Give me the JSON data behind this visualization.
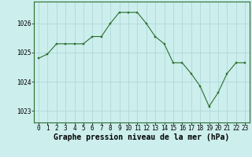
{
  "x": [
    0,
    1,
    2,
    3,
    4,
    5,
    6,
    7,
    8,
    9,
    10,
    11,
    12,
    13,
    14,
    15,
    16,
    17,
    18,
    19,
    20,
    21,
    22,
    23
  ],
  "y": [
    1024.8,
    1024.95,
    1025.3,
    1025.3,
    1025.3,
    1025.3,
    1025.55,
    1025.55,
    1026.0,
    1026.38,
    1026.38,
    1026.38,
    1026.0,
    1025.55,
    1025.3,
    1024.65,
    1024.65,
    1024.28,
    1023.85,
    1023.15,
    1023.62,
    1024.28,
    1024.65,
    1024.65
  ],
  "line_color": "#2d6e2d",
  "marker_color": "#2d6e2d",
  "bg_color": "#cceeed",
  "grid_color": "#b0d8d8",
  "xlabel": "Graphe pression niveau de la mer (hPa)",
  "ylim": [
    1022.6,
    1026.75
  ],
  "yticks": [
    1023,
    1024,
    1025,
    1026
  ],
  "xticks": [
    0,
    1,
    2,
    3,
    4,
    5,
    6,
    7,
    8,
    9,
    10,
    11,
    12,
    13,
    14,
    15,
    16,
    17,
    18,
    19,
    20,
    21,
    22,
    23
  ],
  "tick_label_fontsize": 5.5,
  "xlabel_fontsize": 7.0,
  "border_color": "#2d6e2d",
  "figwidth": 3.2,
  "figheight": 2.0,
  "dpi": 100
}
